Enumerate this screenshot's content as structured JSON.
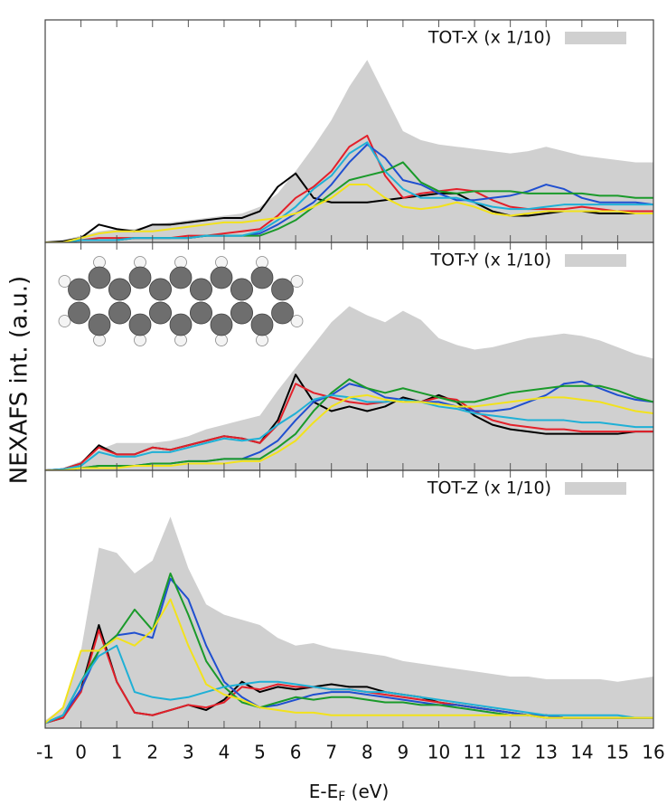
{
  "chart_data": [
    {
      "type": "line",
      "xlim": [
        -1,
        16
      ],
      "ylim": [
        0,
        10
      ],
      "legend": "upper right",
      "x": [
        -1,
        -0.5,
        0,
        0.5,
        1,
        1.5,
        2,
        2.5,
        3,
        3.5,
        4,
        4.5,
        5,
        5.5,
        6,
        6.5,
        7,
        7.5,
        8,
        8.5,
        9,
        9.5,
        10,
        10.5,
        11,
        11.5,
        12,
        12.5,
        13,
        13.5,
        14,
        14.5,
        15,
        15.5,
        16
      ],
      "series": [
        {
          "name": "TOT-X (x 1/10)",
          "area": true,
          "color": "#d0d0d0",
          "values": [
            0,
            0.1,
            0.3,
            0.5,
            0.6,
            0.6,
            0.8,
            0.9,
            1.0,
            1.1,
            1.2,
            1.3,
            1.6,
            2.2,
            3.2,
            4.3,
            5.5,
            7.0,
            8.2,
            6.6,
            5.0,
            4.6,
            4.4,
            4.3,
            4.2,
            4.1,
            4.0,
            4.1,
            4.3,
            4.1,
            3.9,
            3.8,
            3.7,
            3.6,
            3.6
          ]
        },
        {
          "color": "#000000",
          "values": [
            0,
            0.05,
            0.2,
            0.8,
            0.6,
            0.5,
            0.8,
            0.8,
            0.9,
            1.0,
            1.1,
            1.1,
            1.4,
            2.5,
            3.1,
            2.0,
            1.8,
            1.8,
            1.8,
            1.9,
            2.0,
            2.1,
            2.2,
            2.2,
            1.8,
            1.4,
            1.2,
            1.2,
            1.3,
            1.4,
            1.4,
            1.3,
            1.3,
            1.3,
            1.3
          ]
        },
        {
          "color": "#e3202a",
          "values": [
            0,
            0,
            0.1,
            0.2,
            0.2,
            0.2,
            0.2,
            0.2,
            0.3,
            0.3,
            0.4,
            0.5,
            0.6,
            1.2,
            2.0,
            2.5,
            3.2,
            4.3,
            4.8,
            3.0,
            2.0,
            2.2,
            2.3,
            2.4,
            2.3,
            1.9,
            1.6,
            1.5,
            1.5,
            1.5,
            1.6,
            1.5,
            1.4,
            1.4,
            1.4
          ]
        },
        {
          "color": "#1f4fd0",
          "values": [
            0,
            0,
            0.1,
            0.1,
            0.1,
            0.2,
            0.2,
            0.2,
            0.2,
            0.3,
            0.3,
            0.3,
            0.4,
            0.8,
            1.3,
            1.8,
            2.6,
            3.6,
            4.4,
            3.8,
            2.8,
            2.6,
            2.2,
            1.9,
            1.9,
            2.0,
            2.1,
            2.3,
            2.6,
            2.4,
            2.0,
            1.8,
            1.8,
            1.8,
            1.7
          ]
        },
        {
          "color": "#1a9a2a",
          "values": [
            0,
            0,
            0.1,
            0.1,
            0.1,
            0.2,
            0.2,
            0.2,
            0.2,
            0.3,
            0.3,
            0.3,
            0.3,
            0.6,
            1.0,
            1.6,
            2.2,
            2.8,
            3.0,
            3.2,
            3.6,
            2.7,
            2.3,
            2.2,
            2.3,
            2.3,
            2.3,
            2.2,
            2.2,
            2.2,
            2.2,
            2.1,
            2.1,
            2.0,
            2.0
          ]
        },
        {
          "color": "#1fb0d6",
          "values": [
            0,
            0,
            0.1,
            0.1,
            0.1,
            0.2,
            0.2,
            0.2,
            0.2,
            0.3,
            0.3,
            0.3,
            0.5,
            1.0,
            1.6,
            2.4,
            3.0,
            4.0,
            4.5,
            3.2,
            2.4,
            2.0,
            2.0,
            2.0,
            1.8,
            1.6,
            1.5,
            1.5,
            1.6,
            1.7,
            1.7,
            1.7,
            1.7,
            1.7,
            1.7
          ]
        },
        {
          "color": "#f2e21c",
          "values": [
            0,
            0,
            0.2,
            0.4,
            0.5,
            0.5,
            0.5,
            0.6,
            0.7,
            0.8,
            0.9,
            0.9,
            1.0,
            1.1,
            1.3,
            1.6,
            2.0,
            2.6,
            2.6,
            2.0,
            1.6,
            1.5,
            1.6,
            1.8,
            1.6,
            1.3,
            1.2,
            1.3,
            1.4,
            1.4,
            1.4,
            1.4,
            1.4,
            1.3,
            1.3
          ]
        }
      ]
    },
    {
      "type": "line",
      "xlim": [
        -1,
        16
      ],
      "ylim": [
        0,
        10
      ],
      "legend": "upper right",
      "ylabel": "NEXAFS int. (a.u.)",
      "x": [
        -1,
        -0.5,
        0,
        0.5,
        1,
        1.5,
        2,
        2.5,
        3,
        3.5,
        4,
        4.5,
        5,
        5.5,
        6,
        6.5,
        7,
        7.5,
        8,
        8.5,
        9,
        9.5,
        10,
        10.5,
        11,
        11.5,
        12,
        12.5,
        13,
        13.5,
        14,
        14.5,
        15,
        15.5,
        16
      ],
      "series": [
        {
          "name": "TOT-Y (x 1/10)",
          "area": true,
          "color": "#d0d0d0",
          "values": [
            0,
            0.1,
            0.4,
            0.9,
            1.2,
            1.2,
            1.2,
            1.3,
            1.5,
            1.8,
            2.0,
            2.2,
            2.4,
            3.5,
            4.5,
            5.5,
            6.5,
            7.2,
            6.8,
            6.5,
            7.0,
            6.6,
            5.8,
            5.5,
            5.3,
            5.4,
            5.6,
            5.8,
            5.9,
            6.0,
            5.9,
            5.7,
            5.4,
            5.1,
            4.9
          ]
        },
        {
          "color": "#000000",
          "values": [
            0,
            0.05,
            0.3,
            1.1,
            0.7,
            0.7,
            1.0,
            0.9,
            1.1,
            1.3,
            1.5,
            1.4,
            1.2,
            2.2,
            4.2,
            3.0,
            2.6,
            2.8,
            2.6,
            2.8,
            3.2,
            3.0,
            3.3,
            3.0,
            2.4,
            2.0,
            1.8,
            1.7,
            1.6,
            1.6,
            1.6,
            1.6,
            1.6,
            1.7,
            1.7
          ]
        },
        {
          "color": "#e3202a",
          "values": [
            0,
            0.05,
            0.3,
            1.0,
            0.7,
            0.7,
            1.0,
            0.9,
            1.1,
            1.3,
            1.5,
            1.4,
            1.2,
            2.0,
            3.8,
            3.4,
            3.2,
            3.0,
            2.9,
            3.0,
            3.1,
            3.0,
            3.2,
            3.1,
            2.6,
            2.2,
            2.0,
            1.9,
            1.8,
            1.8,
            1.7,
            1.7,
            1.7,
            1.7,
            1.7
          ]
        },
        {
          "color": "#1f4fd0",
          "values": [
            0,
            0,
            0.1,
            0.2,
            0.2,
            0.2,
            0.3,
            0.3,
            0.4,
            0.4,
            0.5,
            0.5,
            0.8,
            1.3,
            2.2,
            3.0,
            3.3,
            3.8,
            3.6,
            3.2,
            3.1,
            3.0,
            3.0,
            2.8,
            2.6,
            2.6,
            2.7,
            3.0,
            3.3,
            3.8,
            3.9,
            3.6,
            3.3,
            3.1,
            3.0
          ]
        },
        {
          "color": "#1a9a2a",
          "values": [
            0,
            0,
            0.1,
            0.2,
            0.2,
            0.2,
            0.3,
            0.3,
            0.4,
            0.4,
            0.5,
            0.5,
            0.5,
            1.0,
            1.6,
            2.6,
            3.4,
            4.0,
            3.6,
            3.4,
            3.6,
            3.4,
            3.2,
            3.0,
            3.0,
            3.2,
            3.4,
            3.5,
            3.6,
            3.7,
            3.7,
            3.7,
            3.5,
            3.2,
            3.0
          ]
        },
        {
          "color": "#1fb0d6",
          "values": [
            0,
            0.05,
            0.2,
            0.8,
            0.6,
            0.6,
            0.8,
            0.8,
            1.0,
            1.2,
            1.4,
            1.3,
            1.4,
            2.0,
            2.5,
            3.1,
            3.3,
            3.2,
            3.0,
            3.0,
            3.1,
            3.0,
            2.8,
            2.7,
            2.5,
            2.4,
            2.3,
            2.2,
            2.2,
            2.2,
            2.1,
            2.1,
            2.0,
            1.9,
            1.9
          ]
        },
        {
          "color": "#f2e21c",
          "values": [
            0,
            0,
            0.1,
            0.1,
            0.1,
            0.2,
            0.2,
            0.2,
            0.3,
            0.3,
            0.3,
            0.4,
            0.4,
            0.8,
            1.3,
            2.1,
            2.8,
            3.2,
            3.3,
            3.1,
            3.0,
            3.0,
            2.9,
            2.8,
            2.8,
            2.9,
            3.0,
            3.1,
            3.2,
            3.2,
            3.1,
            3.0,
            2.8,
            2.6,
            2.5
          ]
        }
      ]
    },
    {
      "type": "line",
      "xlim": [
        -1,
        16
      ],
      "ylim": [
        0,
        10
      ],
      "legend": "upper right",
      "xticks": [
        -1,
        0,
        1,
        2,
        3,
        4,
        5,
        6,
        7,
        8,
        9,
        10,
        11,
        12,
        13,
        14,
        15,
        16
      ],
      "xlabel": [
        "E-E",
        "F",
        " (eV)"
      ],
      "x": [
        -1,
        -0.5,
        0,
        0.5,
        1,
        1.5,
        2,
        2.5,
        3,
        3.5,
        4,
        4.5,
        5,
        5.5,
        6,
        6.5,
        7,
        7.5,
        8,
        8.5,
        9,
        9.5,
        10,
        10.5,
        11,
        11.5,
        12,
        12.5,
        13,
        13.5,
        14,
        14.5,
        15,
        15.5,
        16
      ],
      "series": [
        {
          "name": "TOT-Z (x 1/10)",
          "area": true,
          "color": "#d0d0d0",
          "values": [
            0.3,
            0.8,
            3.0,
            7.0,
            6.8,
            6.0,
            6.5,
            8.2,
            6.2,
            4.8,
            4.4,
            4.2,
            4.0,
            3.5,
            3.2,
            3.3,
            3.1,
            3.0,
            2.9,
            2.8,
            2.6,
            2.5,
            2.4,
            2.3,
            2.2,
            2.1,
            2.0,
            2.0,
            1.9,
            1.9,
            1.9,
            1.9,
            1.8,
            1.9,
            2.0
          ]
        },
        {
          "color": "#000000",
          "values": [
            0.2,
            0.4,
            1.5,
            4.0,
            1.8,
            0.6,
            0.5,
            0.7,
            0.9,
            0.7,
            1.1,
            1.8,
            1.4,
            1.6,
            1.5,
            1.6,
            1.7,
            1.6,
            1.6,
            1.4,
            1.3,
            1.2,
            1.0,
            0.9,
            0.8,
            0.7,
            0.6,
            0.5,
            0.5,
            0.4,
            0.4,
            0.4,
            0.4,
            0.4,
            0.4
          ]
        },
        {
          "color": "#e3202a",
          "values": [
            0.2,
            0.4,
            1.4,
            3.8,
            1.8,
            0.6,
            0.5,
            0.7,
            0.9,
            0.8,
            1.0,
            1.6,
            1.5,
            1.7,
            1.6,
            1.6,
            1.5,
            1.5,
            1.4,
            1.3,
            1.2,
            1.1,
            1.0,
            0.9,
            0.8,
            0.7,
            0.6,
            0.5,
            0.5,
            0.4,
            0.4,
            0.4,
            0.4,
            0.4,
            0.4
          ]
        },
        {
          "color": "#1f4fd0",
          "values": [
            0.2,
            0.5,
            1.5,
            3.0,
            3.6,
            3.7,
            3.5,
            5.8,
            5.0,
            3.2,
            1.8,
            1.2,
            0.8,
            0.9,
            1.1,
            1.3,
            1.4,
            1.4,
            1.3,
            1.2,
            1.1,
            1.0,
            0.9,
            0.9,
            0.8,
            0.7,
            0.6,
            0.5,
            0.5,
            0.4,
            0.4,
            0.4,
            0.4,
            0.4,
            0.4
          ]
        },
        {
          "color": "#1a9a2a",
          "values": [
            0.2,
            0.5,
            1.8,
            3.0,
            3.6,
            4.6,
            3.8,
            6.0,
            4.4,
            2.6,
            1.6,
            1.0,
            0.8,
            1.0,
            1.2,
            1.1,
            1.2,
            1.2,
            1.1,
            1.0,
            1.0,
            0.9,
            0.9,
            0.8,
            0.7,
            0.6,
            0.5,
            0.5,
            0.4,
            0.4,
            0.4,
            0.4,
            0.4,
            0.4,
            0.4
          ]
        },
        {
          "color": "#1fb0d6",
          "values": [
            0.2,
            0.5,
            1.8,
            2.8,
            3.2,
            1.4,
            1.2,
            1.1,
            1.2,
            1.4,
            1.6,
            1.7,
            1.8,
            1.8,
            1.7,
            1.6,
            1.5,
            1.5,
            1.4,
            1.4,
            1.3,
            1.2,
            1.1,
            1.0,
            0.9,
            0.8,
            0.7,
            0.6,
            0.5,
            0.5,
            0.5,
            0.5,
            0.5,
            0.4,
            0.4
          ]
        },
        {
          "color": "#f2e21c",
          "values": [
            0.2,
            0.8,
            3.0,
            3.0,
            3.5,
            3.2,
            3.8,
            5.0,
            3.2,
            1.7,
            1.3,
            1.1,
            0.8,
            0.7,
            0.6,
            0.6,
            0.5,
            0.5,
            0.5,
            0.5,
            0.5,
            0.5,
            0.5,
            0.5,
            0.5,
            0.5,
            0.5,
            0.5,
            0.4,
            0.4,
            0.4,
            0.4,
            0.4,
            0.4,
            0.4
          ]
        }
      ]
    }
  ]
}
